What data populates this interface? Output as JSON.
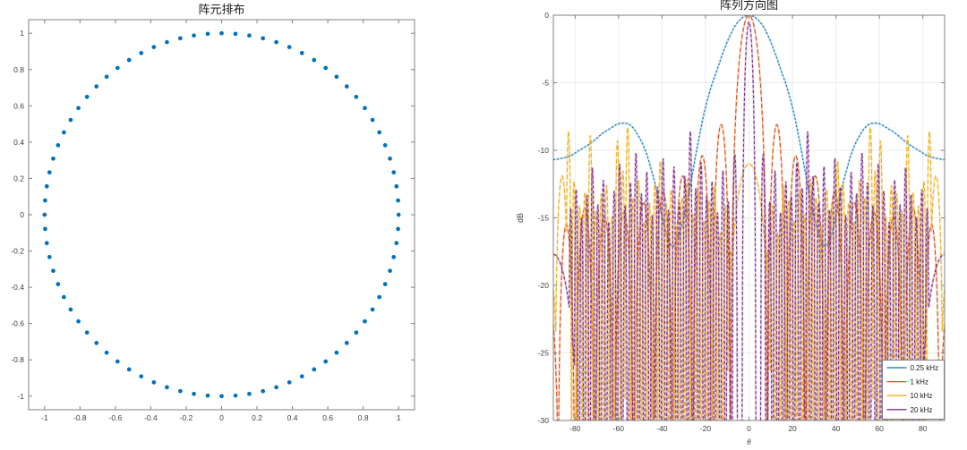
{
  "figure": {
    "background": "#ffffff",
    "axis_color": "#808080",
    "grid_color": "#ececec",
    "label_color": "#3f3f3f"
  },
  "chart_data": [
    {
      "id": "array-layout",
      "type": "scatter",
      "title": "阵元排布",
      "xlabel": "",
      "ylabel": "",
      "xlim": [
        -1.09,
        1.09
      ],
      "ylim": [
        -1.075,
        1.075
      ],
      "xticks": [
        -1,
        -0.8,
        -0.6,
        -0.4,
        -0.2,
        0,
        0.2,
        0.4,
        0.6,
        0.8,
        1
      ],
      "yticks": [
        -1,
        -0.8,
        -0.6,
        -0.4,
        -0.2,
        0,
        0.2,
        0.4,
        0.6,
        0.8,
        1
      ],
      "grid": false,
      "marker_color": "#0072BD",
      "data": {
        "layout": "uniform-circle",
        "n_elements": 80,
        "radius": 1.0,
        "center": [
          0,
          0
        ]
      }
    },
    {
      "id": "array-pattern",
      "type": "line",
      "title": "阵列方向图",
      "xlabel": "θ",
      "ylabel": "dB",
      "xlim": [
        -90,
        90
      ],
      "ylim": [
        -30,
        0
      ],
      "xticks": [
        -80,
        -60,
        -40,
        -20,
        0,
        20,
        40,
        60,
        80
      ],
      "yticks": [
        0,
        -5,
        -10,
        -15,
        -20,
        -25,
        -30
      ],
      "grid": true,
      "legend": {
        "position": "south-east",
        "entries": [
          "0.25 kHz",
          "1 kHz",
          "10 kHz",
          "20 kHz"
        ]
      },
      "series": [
        {
          "name": "0.25 kHz",
          "color": "#0072BD",
          "style": "anchors",
          "symmetric": true,
          "points": [
            [
              0,
              0
            ],
            [
              3,
              -0.18
            ],
            [
              6,
              -0.7
            ],
            [
              9,
              -1.6
            ],
            [
              12,
              -2.8
            ],
            [
              15,
              -4.2
            ],
            [
              17,
              -5.1
            ],
            [
              19,
              -6.2
            ],
            [
              21,
              -7.5
            ],
            [
              23,
              -9.1
            ],
            [
              25,
              -10.8
            ],
            [
              27,
              -12.6
            ],
            [
              29,
              -14.2
            ],
            [
              31,
              -15.6
            ],
            [
              33,
              -16.6
            ],
            [
              35,
              -17.1
            ],
            [
              37,
              -16.7
            ],
            [
              39,
              -15.6
            ],
            [
              41,
              -14.1
            ],
            [
              43,
              -12.6
            ],
            [
              45,
              -11.4
            ],
            [
              47,
              -10.3
            ],
            [
              49,
              -9.5
            ],
            [
              51,
              -8.9
            ],
            [
              53,
              -8.4
            ],
            [
              55,
              -8.1
            ],
            [
              57,
              -8.0
            ],
            [
              59,
              -8.0
            ],
            [
              61,
              -8.1
            ],
            [
              64,
              -8.4
            ],
            [
              67,
              -8.7
            ],
            [
              70,
              -9.1
            ],
            [
              73,
              -9.5
            ],
            [
              76,
              -9.8
            ],
            [
              79,
              -10.1
            ],
            [
              82,
              -10.4
            ],
            [
              85,
              -10.55
            ],
            [
              88,
              -10.65
            ],
            [
              90,
              -10.7
            ]
          ]
        },
        {
          "name": "1 kHz",
          "color": "#D95319",
          "style": "lobes",
          "symmetric": true,
          "lobes": [
            [
              0,
              0,
              17
            ],
            [
              12.8,
              -8.1,
              8.6
            ],
            [
              21.5,
              -10.4,
              8.8
            ],
            [
              30.5,
              -11.9,
              9
            ],
            [
              39.5,
              -13.1,
              9
            ],
            [
              48.5,
              -13.9,
              9
            ],
            [
              57.5,
              -14.6,
              9
            ],
            [
              66.5,
              -14.9,
              9
            ],
            [
              75.5,
              -14.3,
              9
            ],
            [
              84,
              -15.5,
              8
            ],
            [
              92,
              -21,
              10
            ]
          ]
        },
        {
          "name": "10 kHz",
          "color": "#EDB120",
          "style": "lobes",
          "symmetric": true,
          "lobes": [
            [
              0,
              -11,
              22
            ],
            [
              8.6,
              -17.4,
              2.4
            ],
            [
              10.8,
              -14.1,
              2.2
            ],
            [
              13.3,
              -16.1,
              2.3
            ],
            [
              15.8,
              -12.6,
              2.3
            ],
            [
              18.3,
              -13.7,
              2.4
            ],
            [
              20.8,
              -15.2,
              2.2
            ],
            [
              23.3,
              -13.0,
              2.3
            ],
            [
              25.8,
              -14.7,
              2.4
            ],
            [
              28.3,
              -12.1,
              2.3
            ],
            [
              30.8,
              -13.5,
              2.3
            ],
            [
              33.3,
              -15.6,
              2.3
            ],
            [
              35.8,
              -12.9,
              2.4
            ],
            [
              38.3,
              -14.2,
              2.3
            ],
            [
              40.8,
              -10.8,
              2.3
            ],
            [
              43.3,
              -12.5,
              2.4
            ],
            [
              45.8,
              -13.9,
              2.3
            ],
            [
              48.3,
              -15.3,
              2.4
            ],
            [
              50.8,
              -12.2,
              2.3
            ],
            [
              53.3,
              -13.5,
              2.3
            ],
            [
              55.8,
              -8.3,
              2.5
            ],
            [
              58,
              -11.5,
              2.2
            ],
            [
              60.5,
              -9.3,
              2.4
            ],
            [
              63,
              -14.9,
              2.2
            ],
            [
              65.5,
              -12.6,
              2.4
            ],
            [
              68,
              -13.2,
              2.3
            ],
            [
              70.5,
              -14.5,
              2.4
            ],
            [
              73,
              -8.9,
              2.3
            ],
            [
              75.5,
              -13.1,
              2.3
            ],
            [
              78,
              -14.1,
              2.4
            ],
            [
              80.5,
              -12.3,
              2.2
            ],
            [
              83,
              -8.6,
              2.6
            ],
            [
              86,
              -11.9,
              7
            ],
            [
              90.5,
              -20,
              6
            ]
          ]
        },
        {
          "name": "20 kHz",
          "color": "#7E2F8E",
          "style": "lobes",
          "symmetric": true,
          "lobes": [
            [
              0,
              -0.5,
              6.4
            ],
            [
              6.5,
              -10.3,
              2.4
            ],
            [
              9.5,
              -13.8,
              1.9
            ],
            [
              12,
              -11.5,
              1.8
            ],
            [
              14.5,
              -14.6,
              1.9
            ],
            [
              17,
              -12.3,
              1.8
            ],
            [
              19.5,
              -13.4,
              1.9
            ],
            [
              22,
              -10.9,
              1.8
            ],
            [
              24.5,
              -12.8,
              1.9
            ],
            [
              27,
              -8.6,
              1.9
            ],
            [
              29.5,
              -11.9,
              1.8
            ],
            [
              32,
              -13.9,
              1.9
            ],
            [
              34.5,
              -11.2,
              1.8
            ],
            [
              37,
              -14.4,
              1.9
            ],
            [
              39.5,
              -10.6,
              1.8
            ],
            [
              42,
              -12.7,
              1.9
            ],
            [
              44.5,
              -14.8,
              1.8
            ],
            [
              47,
              -11.6,
              1.9
            ],
            [
              49.5,
              -13.2,
              1.8
            ],
            [
              52,
              -10.2,
              1.9
            ],
            [
              54.5,
              -12.4,
              1.8
            ],
            [
              57,
              -14.1,
              1.9
            ],
            [
              59.5,
              -11.0,
              1.8
            ],
            [
              62,
              -13.0,
              1.9
            ],
            [
              64.5,
              -15.3,
              1.8
            ],
            [
              67,
              -12.2,
              1.9
            ],
            [
              69.5,
              -14.0,
              1.8
            ],
            [
              72,
              -11.3,
              1.9
            ],
            [
              74.5,
              -13.3,
              1.8
            ],
            [
              77,
              -15.0,
              1.9
            ],
            [
              79.5,
              -12.9,
              1.8
            ],
            [
              82,
              -14.3,
              1.9
            ],
            [
              90,
              -17.7,
              26
            ]
          ]
        }
      ]
    }
  ]
}
